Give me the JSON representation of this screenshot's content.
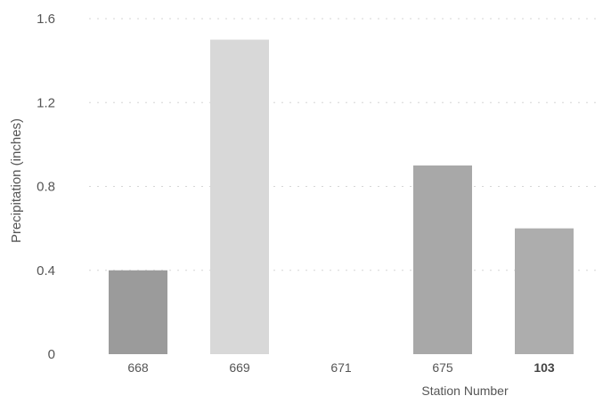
{
  "chart_data": {
    "type": "bar",
    "categories": [
      "668",
      "669",
      "671",
      "675",
      "103"
    ],
    "values": [
      0.4,
      1.5,
      0.0,
      0.9,
      0.6
    ],
    "xlabel": "Station Number",
    "ylabel": "Precipitation (inches)",
    "ylim": [
      0,
      1.6
    ],
    "y_ticks": [
      "0",
      "0.4",
      "0.8",
      "1.2",
      "1.6"
    ],
    "grid": true,
    "bar_colors": [
      "#9b9b9b",
      "#d8d8d8",
      "#f1f1f1",
      "#a8a8a8",
      "#adadad"
    ]
  }
}
